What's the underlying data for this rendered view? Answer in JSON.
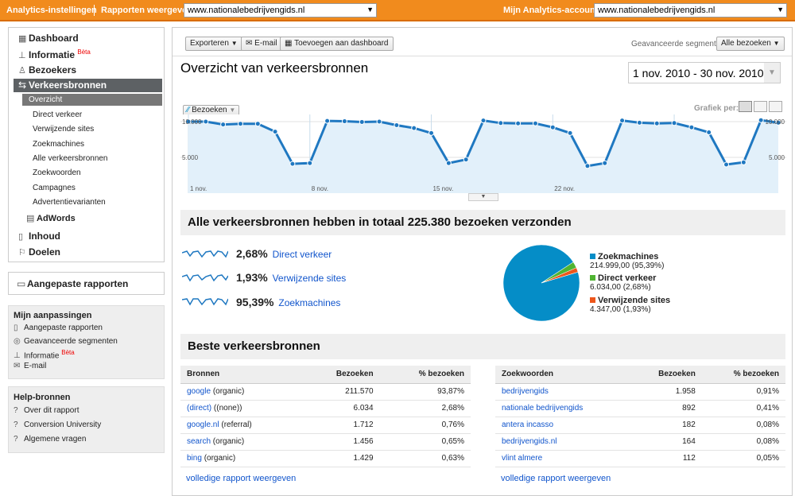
{
  "topbar": {
    "settings": "Analytics-instellingen",
    "reports_label": "Rapporten weergeven:",
    "reports_value": "www.nationalebedrijvengids.nl",
    "accounts_label": "Mijn Analytics-accounts:",
    "accounts_value": "www.nationalebedrijvengids.nl"
  },
  "nav": {
    "dashboard": "Dashboard",
    "informatie": "Informatie",
    "beta": "Bèta",
    "bezoekers": "Bezoekers",
    "verkeersbronnen": "Verkeersbronnen",
    "subitems": [
      "Overzicht",
      "Direct verkeer",
      "Verwijzende sites",
      "Zoekmachines",
      "Alle verkeersbronnen",
      "Zoekwoorden",
      "Campagnes",
      "Advertentievarianten"
    ],
    "adwords": "AdWords",
    "inhoud": "Inhoud",
    "doelen": "Doelen"
  },
  "custom_reports": "Aangepaste rapporten",
  "my_custom": {
    "title": "Mijn aanpassingen",
    "items": [
      "Aangepaste rapporten",
      "Geavanceerde segmenten",
      "Informatie",
      "E-mail"
    ],
    "beta": "Bèta"
  },
  "help": {
    "title": "Help-bronnen",
    "items": [
      "Over dit rapport",
      "Conversion University",
      "Algemene vragen"
    ]
  },
  "toolbar": {
    "export": "Exporteren",
    "email": "E-mail",
    "add_dashboard": "Toevoegen aan dashboard",
    "segments_label": "Geavanceerde segmenten:",
    "segments_value": "Alle bezoeken"
  },
  "page_title": "Overzicht van verkeersbronnen",
  "date_range": "1 nov. 2010 - 30 nov. 2010",
  "chart_controls": {
    "metric": "Bezoeken",
    "graph_label": "Grafiek per:"
  },
  "chart_data": {
    "type": "area",
    "series": [
      {
        "name": "Bezoeken",
        "values": [
          10000,
          10000,
          9600,
          9700,
          9700,
          8600,
          4100,
          4200,
          10100,
          10050,
          9950,
          10000,
          9500,
          9100,
          8400,
          4200,
          4700,
          10150,
          9800,
          9750,
          9750,
          9200,
          8400,
          3800,
          4200,
          10150,
          9850,
          9750,
          9800,
          9200,
          8500,
          4000,
          4300,
          10200,
          9850
        ]
      }
    ],
    "x_labels": [
      "1 nov.",
      "8 nov.",
      "15 nov.",
      "22 nov."
    ],
    "y_labels": [
      "10.000",
      "5.000"
    ],
    "ylim": [
      0,
      11000
    ]
  },
  "summary": {
    "title": "Alle verkeersbronnen hebben in totaal 225.380 bezoeken verzonden",
    "rows": [
      {
        "pct": "2,68%",
        "label": "Direct verkeer"
      },
      {
        "pct": "1,93%",
        "label": "Verwijzende sites"
      },
      {
        "pct": "95,39%",
        "label": "Zoekmachines"
      }
    ],
    "legend": [
      {
        "name": "Zoekmachines",
        "value": "214.999,00 (95,39%)",
        "color": "#058dc7"
      },
      {
        "name": "Direct verkeer",
        "value": "6.034,00 (2,68%)",
        "color": "#50b432"
      },
      {
        "name": "Verwijzende sites",
        "value": "4.347,00 (1,93%)",
        "color": "#ed561b"
      }
    ],
    "pie": [
      95.39,
      2.68,
      1.93
    ]
  },
  "top": {
    "title": "Beste verkeersbronnen",
    "sources": {
      "headers": [
        "Bronnen",
        "Bezoeken",
        "% bezoeken"
      ],
      "rows": [
        [
          "google",
          "(organic)",
          "211.570",
          "93,87%"
        ],
        [
          "(direct)",
          "((none))",
          "6.034",
          "2,68%"
        ],
        [
          "google.nl",
          "(referral)",
          "1.712",
          "0,76%"
        ],
        [
          "search",
          "(organic)",
          "1.456",
          "0,65%"
        ],
        [
          "bing",
          "(organic)",
          "1.429",
          "0,63%"
        ]
      ],
      "link": "volledige rapport weergeven"
    },
    "keywords": {
      "headers": [
        "Zoekwoorden",
        "Bezoeken",
        "% bezoeken"
      ],
      "rows": [
        [
          "bedrijvengids",
          "1.958",
          "0,91%"
        ],
        [
          "nationale bedrijvengids",
          "892",
          "0,41%"
        ],
        [
          "antera incasso",
          "182",
          "0,08%"
        ],
        [
          "bedrijvengids.nl",
          "164",
          "0,08%"
        ],
        [
          "vlint almere",
          "112",
          "0,05%"
        ]
      ],
      "link": "volledige rapport weergeven"
    }
  }
}
